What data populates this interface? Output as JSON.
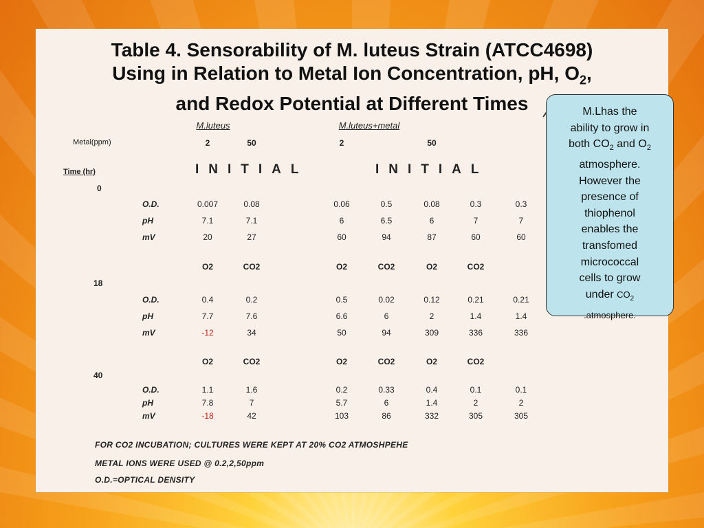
{
  "title": {
    "line1": "Table 4. Sensorability of M. luteus Strain (ATCC4698)",
    "line2_pre": "Using in Relation to Metal Ion Concentration, pH, O",
    "line2_sub": "2",
    "line2_post": ",",
    "line3": "and Redox Potential at Different Times"
  },
  "table": {
    "group1_header": "M.luteus",
    "group2_header": "M.luteus+metal",
    "metal_label": "Metal(ppm)",
    "metal_values": [
      "2",
      "50",
      "2",
      "50"
    ],
    "time_label": "Time (hr)",
    "initial_label": "INITIAL",
    "time_0": "0",
    "time_18": "18",
    "time_40": "40",
    "row_labels": {
      "od": "O.D.",
      "ph": "pH",
      "mv": "mV"
    },
    "gas_labels": [
      "O2",
      "CO2",
      "O2",
      "CO2",
      "O2",
      "CO2"
    ],
    "t0": {
      "od": [
        "0.007",
        "0.08",
        "0.06",
        "0.5",
        "0.08",
        "0.3",
        "0.3"
      ],
      "ph": [
        "7.1",
        "7.1",
        "6",
        "6.5",
        "6",
        "7",
        "7"
      ],
      "mv": [
        "20",
        "27",
        "60",
        "94",
        "87",
        "60",
        "60"
      ]
    },
    "t18": {
      "od": [
        "0.4",
        "0.2",
        "0.5",
        "0.02",
        "0.12",
        "0.21",
        "0.21"
      ],
      "ph": [
        "7.7",
        "7.6",
        "6.6",
        "6",
        "2",
        "1.4",
        "1.4"
      ],
      "mv": [
        "-12",
        "34",
        "50",
        "94",
        "309",
        "336",
        "336"
      ]
    },
    "t40": {
      "od": [
        "1.1",
        "1.6",
        "0.2",
        "0.33",
        "0.4",
        "0.1",
        "0.1"
      ],
      "ph": [
        "7.8",
        "7",
        "5.7",
        "6",
        "1.4",
        "2",
        "2"
      ],
      "mv": [
        "-18",
        "42",
        "103",
        "86",
        "332",
        "305",
        "305"
      ]
    },
    "negative_color": "#c0201a"
  },
  "footnotes": {
    "line1": "FOR CO2 INCUBATION; CULTURES WERE KEPT AT 20% CO2 ATMOSHPEHE",
    "line2": "METAL IONS WERE USED @ 0.2,2,50ppm",
    "line3": "O.D.=OPTICAL DENSITY"
  },
  "callout": {
    "t1": "M.Lhas the",
    "t2": "ability to grow in",
    "t3_pre": "both CO",
    "t3_sub": "2",
    "t3_mid": " and O",
    "t3_sub2": "2",
    "t4": "atmosphere.",
    "t5": "However the",
    "t6": "presence of",
    "t7": "thiophenol",
    "t8": "enables the",
    "t9": "transfomed",
    "t10": "micrococcal",
    "t11": "cells to grow",
    "t12_pre": "under ",
    "t12_co": "CO",
    "t12_sub": "2",
    "t13": ".atmosphere.",
    "bg_color": "#bde4ec"
  }
}
